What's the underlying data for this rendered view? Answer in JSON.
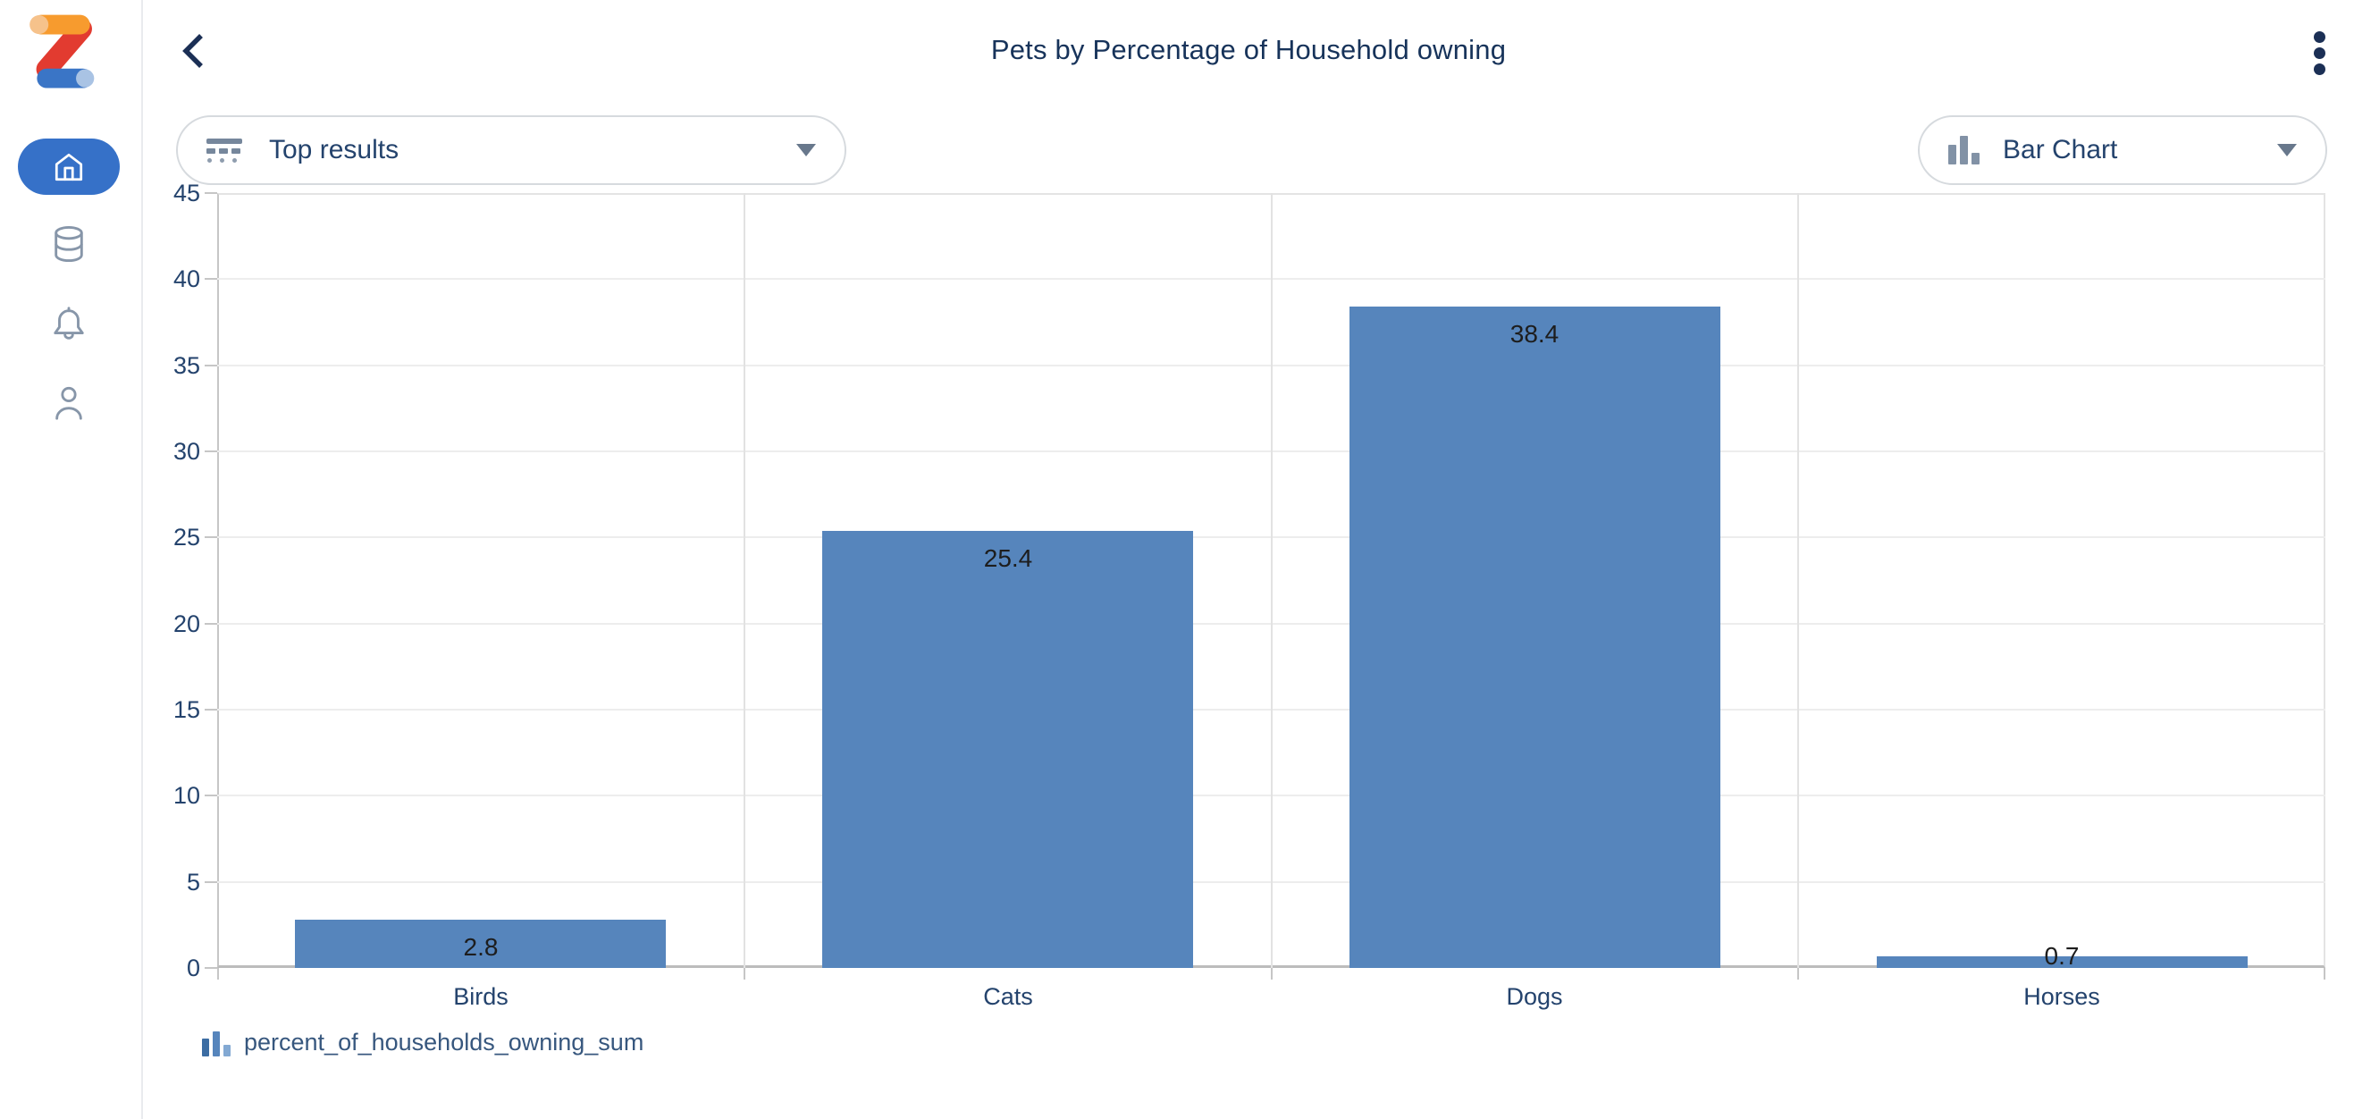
{
  "header": {
    "title": "Pets by Percentage of Household owning"
  },
  "sidebar": {
    "items": [
      {
        "icon": "home-icon",
        "active": true
      },
      {
        "icon": "database-icon",
        "active": false
      },
      {
        "icon": "bell-icon",
        "active": false
      },
      {
        "icon": "user-icon",
        "active": false
      }
    ]
  },
  "controls": {
    "results_dropdown": {
      "label": "Top results",
      "icon": "top-results-icon"
    },
    "chart_type_dropdown": {
      "label": "Bar Chart",
      "icon": "bar-chart-icon"
    }
  },
  "legend": {
    "label": "percent_of_households_owning_sum",
    "icon": "bar-chart-icon"
  },
  "colors": {
    "bar": "#5685bc",
    "active_nav": "#3671c8",
    "title_text": "#17335a",
    "axis_text": "#24436d",
    "logo_orange": "#f79b2e",
    "logo_red": "#e23b30",
    "logo_blue": "#3a75c6"
  },
  "chart_data": {
    "type": "bar",
    "title": "Pets by Percentage of Household owning",
    "categories": [
      "Birds",
      "Cats",
      "Dogs",
      "Horses"
    ],
    "values": [
      2.8,
      25.4,
      38.4,
      0.7
    ],
    "series_name": "percent_of_households_owning_sum",
    "xlabel": "",
    "ylabel": "",
    "ylim": [
      0,
      45
    ],
    "ytick_step": 5,
    "grid": true,
    "bar_color": "#5685bc",
    "value_labels": true,
    "legend_position": "bottom"
  }
}
